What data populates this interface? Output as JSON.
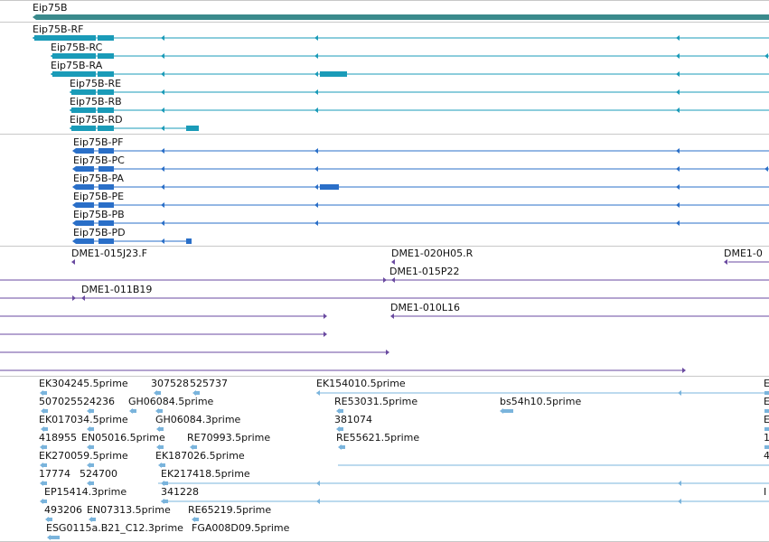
{
  "gene": {
    "name": "Eip75B"
  },
  "transcripts": [
    {
      "name": "Eip75B-RF"
    },
    {
      "name": "Eip75B-RC"
    },
    {
      "name": "Eip75B-RA"
    },
    {
      "name": "Eip75B-RE"
    },
    {
      "name": "Eip75B-RB"
    },
    {
      "name": "Eip75B-RD"
    }
  ],
  "proteins": [
    {
      "name": "Eip75B-PF"
    },
    {
      "name": "Eip75B-PC"
    },
    {
      "name": "Eip75B-PA"
    },
    {
      "name": "Eip75B-PE"
    },
    {
      "name": "Eip75B-PB"
    },
    {
      "name": "Eip75B-PD"
    }
  ],
  "clones": [
    "DME1-015J23.F",
    "DME1-020H05.R",
    "DME1-0",
    "DME1-015P22",
    "DME1-011B19",
    "DME1-010L16"
  ],
  "ests": [
    "EK304245.5prime",
    "307528",
    "525737",
    "EK154010.5prime",
    "E",
    "507025524236",
    "GH06084.5prime",
    "RE53031.5prime",
    "bs54h10.5prime",
    "E",
    "EK017034.5prime",
    "GH06084.3prime",
    "381074",
    "E",
    "418955",
    "EN05016.5prime",
    "RE70993.5prime",
    "RE55621.5prime",
    "1",
    "EK270059.5prime",
    "EK187026.5prime",
    "4",
    "17774",
    "524700",
    "EK217418.5prime",
    "",
    "EP15414.3prime",
    "341228",
    "I",
    "493206",
    "EN07313.5prime",
    "RE65219.5prime",
    "ESG0115a.B21_C12.3prime",
    "FGA008D09.5prime"
  ],
  "colors": {
    "gene": "#3a8a8c",
    "transcript": "#1a9bb8",
    "protein": "#2a6fc8",
    "clone": "#6a4aa0",
    "est": "#7ab4dc"
  }
}
